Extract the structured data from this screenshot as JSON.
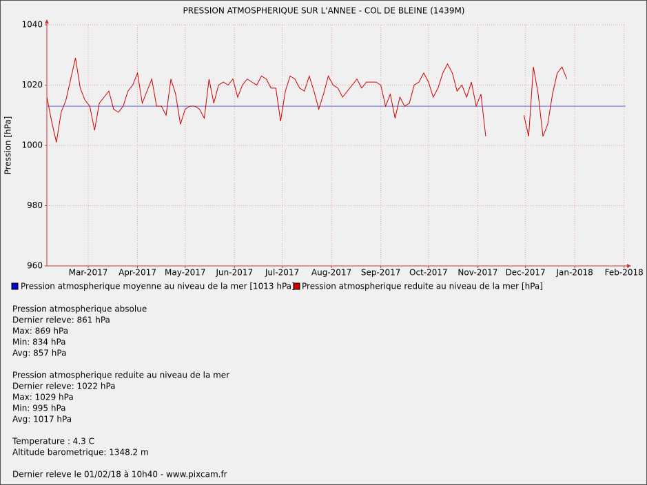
{
  "chart_data": {
    "type": "line",
    "title": "PRESSION ATMOSPHERIQUE SUR L'ANNEE - COL DE BLEINE (1439M)",
    "y_label": "Pression [hPa]",
    "x": [
      0,
      3,
      6,
      9,
      12,
      15,
      18,
      21,
      24,
      27,
      30,
      33,
      36,
      39,
      42,
      45,
      48,
      51,
      54,
      57,
      60,
      63,
      66,
      69,
      72,
      75,
      78,
      81,
      84,
      87,
      90,
      93,
      96,
      99,
      102,
      105,
      108,
      111,
      114,
      117,
      120,
      123,
      126,
      129,
      132,
      135,
      138,
      141,
      144,
      147,
      150,
      153,
      156,
      159,
      162,
      165,
      168,
      171,
      174,
      177,
      180,
      183,
      186,
      189,
      192,
      195,
      198,
      201,
      204,
      207,
      210,
      213,
      216,
      219,
      222,
      225,
      228,
      231,
      234,
      237,
      240,
      243,
      246,
      249,
      252,
      255,
      258,
      261,
      264,
      267,
      270,
      273,
      276,
      279,
      300,
      303,
      306,
      309,
      312,
      315,
      318,
      321,
      324,
      327
    ],
    "series": [
      {
        "name": "Pression atmospherique reduite au niveau de la mer [hPa]",
        "color": "#cc0000",
        "values": [
          1016,
          1008,
          1001,
          1011,
          1015,
          1022,
          1029,
          1019,
          1015,
          1013,
          1005,
          1014,
          1016,
          1018,
          1012,
          1011,
          1013,
          1018,
          1020,
          1024,
          1014,
          1018,
          1022,
          1013,
          1013,
          1010,
          1022,
          1017,
          1007,
          1012,
          1013,
          1013,
          1012,
          1009,
          1022,
          1014,
          1020,
          1021,
          1020,
          1022,
          1016,
          1020,
          1022,
          1021,
          1020,
          1023,
          1022,
          1019,
          1019,
          1008,
          1018,
          1023,
          1022,
          1019,
          1018,
          1023,
          1018,
          1012,
          1017,
          1023,
          1020,
          1019,
          1016,
          1018,
          1020,
          1022,
          1019,
          1021,
          1021,
          1021,
          1020,
          1013,
          1017,
          1009,
          1016,
          1013,
          1014,
          1020,
          1021,
          1024,
          1021,
          1016,
          1019,
          1024,
          1027,
          1024,
          1018,
          1020,
          1016,
          1021,
          1013,
          1017,
          1003,
          null,
          1010,
          1003,
          1026,
          1017,
          1003,
          1007,
          1017,
          1024,
          1026,
          1022
        ]
      }
    ],
    "mean_line": {
      "name": "Pression atmospherique moyenne au niveau de la mer [1013 hPa]",
      "color": "#6666dd",
      "value": 1013
    },
    "xlim": [
      0,
      364
    ],
    "xticks": [
      {
        "value": 26,
        "label": "Mar-2017"
      },
      {
        "value": 57,
        "label": "Apr-2017"
      },
      {
        "value": 87,
        "label": "May-2017"
      },
      {
        "value": 118,
        "label": "Jun-2017"
      },
      {
        "value": 148,
        "label": "Jul-2017"
      },
      {
        "value": 179,
        "label": "Aug-2017"
      },
      {
        "value": 210,
        "label": "Sep-2017"
      },
      {
        "value": 240,
        "label": "Oct-2017"
      },
      {
        "value": 271,
        "label": "Nov-2017"
      },
      {
        "value": 301,
        "label": "Dec-2017"
      },
      {
        "value": 332,
        "label": "Jan-2018"
      },
      {
        "value": 363,
        "label": "Feb-2018"
      }
    ],
    "ylim": [
      960,
      1040
    ],
    "yticks": [
      960,
      980,
      1000,
      1020,
      1040
    ],
    "grid": true
  },
  "info_blocks": [
    [
      "Pression atmospherique absolue",
      "Dernier releve: 861 hPa",
      "Max: 869 hPa",
      "Min: 834 hPa",
      "Avg: 857 hPa"
    ],
    [
      "Pression atmospherique reduite au niveau de la mer",
      "Dernier releve: 1022 hPa",
      "Max: 1029 hPa",
      "Min: 995 hPa",
      "Avg: 1017 hPa"
    ],
    [
      "Temperature : 4.3 C",
      "Altitude barometrique: 1348.2 m"
    ],
    [
      "Dernier releve le 01/02/18 à 10h40 - www.pixcam.fr"
    ]
  ]
}
